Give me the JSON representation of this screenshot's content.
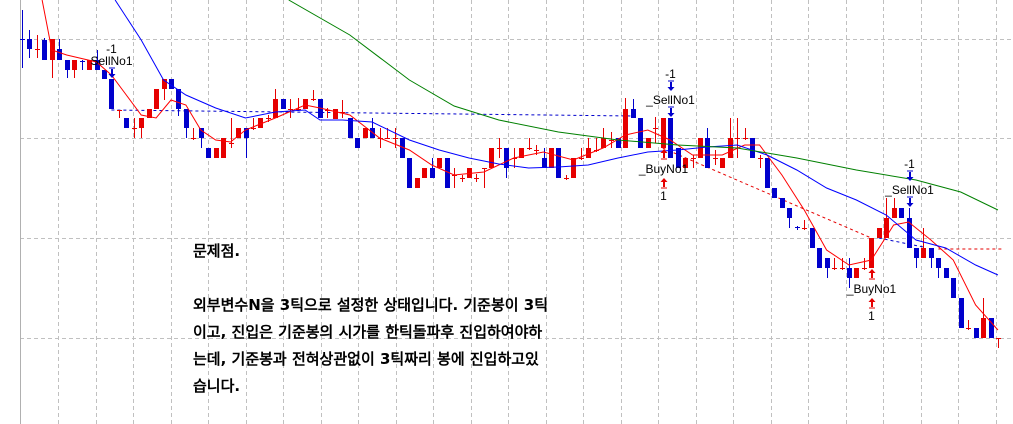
{
  "chart_data": {
    "type": "candlestick",
    "title": "",
    "ylim": [
      976,
      1400
    ],
    "grid": true,
    "colors": {
      "up": "#e60000",
      "down": "#0000cc",
      "ma_short": "#ff0000",
      "ma_mid": "#0000ff",
      "ma_long": "#008000",
      "grid": "#c0c0c0"
    },
    "ohlc": [
      [
        1361,
        1390,
        1332,
        1360
      ],
      [
        1361,
        1370,
        1342,
        1351
      ],
      [
        1351,
        1365,
        1342,
        1351
      ],
      [
        1360,
        1362,
        1340,
        1340
      ],
      [
        1340,
        1361,
        1322,
        1361
      ],
      [
        1351,
        1361,
        1340,
        1340
      ],
      [
        1340,
        1340,
        1322,
        1330
      ],
      [
        1330,
        1340,
        1322,
        1340
      ],
      [
        1339,
        1340,
        1330,
        1338
      ],
      [
        1330,
        1340,
        1330,
        1340
      ],
      [
        1340,
        1350,
        1330,
        1330
      ],
      [
        1330,
        1330,
        1321,
        1321
      ],
      [
        1321,
        1321,
        1291,
        1291
      ],
      [
        1290,
        1290,
        1282,
        1290
      ],
      [
        1282,
        1282,
        1272,
        1272
      ],
      [
        1272,
        1282,
        1262,
        1272
      ],
      [
        1272,
        1282,
        1262,
        1282
      ],
      [
        1282,
        1291,
        1282,
        1291
      ],
      [
        1291,
        1311,
        1291,
        1311
      ],
      [
        1311,
        1321,
        1300,
        1321
      ],
      [
        1321,
        1321,
        1311,
        1311
      ],
      [
        1311,
        1311,
        1284,
        1291
      ],
      [
        1291,
        1291,
        1262,
        1272
      ],
      [
        1262,
        1272,
        1260,
        1262
      ],
      [
        1272,
        1272,
        1252,
        1262
      ],
      [
        1252,
        1252,
        1242,
        1242
      ],
      [
        1242,
        1252,
        1242,
        1252
      ],
      [
        1242,
        1262,
        1242,
        1262
      ],
      [
        1257,
        1282,
        1252,
        1257
      ],
      [
        1262,
        1272,
        1262,
        1272
      ],
      [
        1272,
        1272,
        1242,
        1262
      ],
      [
        1272,
        1282,
        1270,
        1272
      ],
      [
        1272,
        1282,
        1272,
        1282
      ],
      [
        1282,
        1285,
        1278,
        1282
      ],
      [
        1282,
        1311,
        1282,
        1301
      ],
      [
        1301,
        1301,
        1291,
        1291
      ],
      [
        1291,
        1301,
        1282,
        1291
      ],
      [
        1291,
        1302,
        1289,
        1291
      ],
      [
        1291,
        1301,
        1291,
        1301
      ],
      [
        1301,
        1310,
        1299,
        1301
      ],
      [
        1301,
        1301,
        1282,
        1282
      ],
      [
        1290,
        1292,
        1282,
        1290
      ],
      [
        1281,
        1291,
        1281,
        1291
      ],
      [
        1288,
        1300,
        1282,
        1288
      ],
      [
        1282,
        1282,
        1262,
        1262
      ],
      [
        1262,
        1262,
        1252,
        1252
      ],
      [
        1262,
        1272,
        1262,
        1272
      ],
      [
        1272,
        1282,
        1262,
        1262
      ],
      [
        1262,
        1272,
        1252,
        1262
      ],
      [
        1262,
        1272,
        1262,
        1262
      ],
      [
        1262,
        1272,
        1252,
        1262
      ],
      [
        1262,
        1262,
        1242,
        1242
      ],
      [
        1242,
        1242,
        1212,
        1212
      ],
      [
        1212,
        1222,
        1212,
        1222
      ],
      [
        1222,
        1232,
        1222,
        1232
      ],
      [
        1232,
        1242,
        1222,
        1222
      ],
      [
        1232,
        1242,
        1232,
        1242
      ],
      [
        1242,
        1242,
        1212,
        1212
      ],
      [
        1225,
        1232,
        1212,
        1225
      ],
      [
        1222,
        1225,
        1218,
        1222
      ],
      [
        1222,
        1232,
        1222,
        1232
      ],
      [
        1222,
        1226,
        1218,
        1222
      ],
      [
        1232,
        1232,
        1212,
        1232
      ],
      [
        1232,
        1252,
        1232,
        1252
      ],
      [
        1252,
        1262,
        1242,
        1252
      ],
      [
        1252,
        1252,
        1222,
        1232
      ],
      [
        1242,
        1252,
        1232,
        1242
      ],
      [
        1242,
        1252,
        1242,
        1252
      ],
      [
        1252,
        1262,
        1250,
        1252
      ],
      [
        1250,
        1255,
        1245,
        1250
      ],
      [
        1242,
        1252,
        1232,
        1232
      ],
      [
        1232,
        1252,
        1232,
        1252
      ],
      [
        1252,
        1252,
        1222,
        1222
      ],
      [
        1222,
        1225,
        1220,
        1222
      ],
      [
        1222,
        1242,
        1222,
        1242
      ],
      [
        1242,
        1252,
        1240,
        1242
      ],
      [
        1242,
        1262,
        1242,
        1252
      ],
      [
        1250,
        1262,
        1248,
        1250
      ],
      [
        1252,
        1272,
        1252,
        1262
      ],
      [
        1260,
        1268,
        1252,
        1260
      ],
      [
        1262,
        1262,
        1252,
        1252
      ],
      [
        1252,
        1302,
        1252,
        1291
      ],
      [
        1291,
        1301,
        1282,
        1282
      ],
      [
        1282,
        1282,
        1252,
        1252
      ],
      [
        1252,
        1262,
        1252,
        1262
      ],
      [
        1272,
        1283,
        1257,
        1272
      ],
      [
        1252,
        1282,
        1252,
        1282
      ],
      [
        1282,
        1282,
        1242,
        1242
      ],
      [
        1252,
        1252,
        1232,
        1232
      ],
      [
        1232,
        1242,
        1232,
        1242
      ],
      [
        1242,
        1245,
        1232,
        1242
      ],
      [
        1242,
        1262,
        1242,
        1262
      ],
      [
        1262,
        1272,
        1232,
        1232
      ],
      [
        1242,
        1250,
        1235,
        1242
      ],
      [
        1232,
        1242,
        1232,
        1242
      ],
      [
        1242,
        1282,
        1242,
        1262
      ],
      [
        1262,
        1282,
        1242,
        1262
      ],
      [
        1262,
        1272,
        1260,
        1262
      ],
      [
        1262,
        1262,
        1242,
        1242
      ],
      [
        1242,
        1245,
        1232,
        1242
      ],
      [
        1242,
        1242,
        1212,
        1212
      ],
      [
        1212,
        1212,
        1202,
        1202
      ],
      [
        1202,
        1202,
        1192,
        1192
      ],
      [
        1192,
        1192,
        1172,
        1182
      ],
      [
        1173,
        1174,
        1170,
        1172
      ],
      [
        1172,
        1180,
        1170,
        1172
      ],
      [
        1172,
        1172,
        1152,
        1152
      ],
      [
        1152,
        1152,
        1132,
        1132
      ],
      [
        1142,
        1142,
        1122,
        1132
      ],
      [
        1132,
        1142,
        1130,
        1132
      ],
      [
        1132,
        1142,
        1130,
        1132
      ],
      [
        1132,
        1142,
        1112,
        1122
      ],
      [
        1122,
        1132,
        1122,
        1132
      ],
      [
        1132,
        1142,
        1130,
        1132
      ],
      [
        1132,
        1162,
        1132,
        1162
      ],
      [
        1162,
        1172,
        1162,
        1172
      ],
      [
        1162,
        1202,
        1162,
        1182
      ],
      [
        1182,
        1202,
        1182,
        1192
      ],
      [
        1192,
        1192,
        1182,
        1182
      ],
      [
        1182,
        1192,
        1152,
        1152
      ],
      [
        1152,
        1152,
        1132,
        1142
      ],
      [
        1142,
        1172,
        1142,
        1152
      ],
      [
        1152,
        1152,
        1132,
        1142
      ],
      [
        1142,
        1142,
        1122,
        1132
      ],
      [
        1132,
        1132,
        1122,
        1122
      ],
      [
        1122,
        1122,
        1102,
        1102
      ],
      [
        1102,
        1102,
        1072,
        1072
      ],
      [
        1072,
        1080,
        1070,
        1072
      ],
      [
        1072,
        1072,
        1062,
        1062
      ],
      [
        1062,
        1102,
        1062,
        1082
      ],
      [
        1082,
        1082,
        1062,
        1062
      ],
      [
        1062,
        1062,
        1052,
        1062
      ]
    ],
    "moving_averages": [
      {
        "key": "ma_short",
        "points": [
          [
            2.7,
            1400
          ],
          [
            4,
            1350
          ],
          [
            6,
            1345
          ],
          [
            10,
            1338
          ],
          [
            12,
            1325
          ],
          [
            14,
            1305
          ],
          [
            16,
            1285
          ],
          [
            18,
            1282
          ],
          [
            20,
            1300
          ],
          [
            22,
            1295
          ],
          [
            24,
            1270
          ],
          [
            26,
            1260
          ],
          [
            28,
            1258
          ],
          [
            30,
            1270
          ],
          [
            34,
            1282
          ],
          [
            38,
            1295
          ],
          [
            40,
            1292
          ],
          [
            44,
            1285
          ],
          [
            48,
            1262
          ],
          [
            52,
            1250
          ],
          [
            55,
            1235
          ],
          [
            58,
            1225
          ],
          [
            62,
            1228
          ],
          [
            66,
            1242
          ],
          [
            70,
            1248
          ],
          [
            74,
            1240
          ],
          [
            78,
            1252
          ],
          [
            81,
            1265
          ],
          [
            84,
            1270
          ],
          [
            87,
            1260
          ],
          [
            90,
            1245
          ],
          [
            94,
            1245
          ],
          [
            97,
            1255
          ],
          [
            99,
            1255
          ],
          [
            102,
            1225
          ],
          [
            105,
            1190
          ],
          [
            108,
            1150
          ],
          [
            111,
            1135
          ],
          [
            114,
            1140
          ],
          [
            117,
            1175
          ],
          [
            119,
            1178
          ],
          [
            122,
            1160
          ],
          [
            125,
            1140
          ],
          [
            128,
            1095
          ],
          [
            131,
            1070
          ]
        ]
      },
      {
        "key": "ma_mid",
        "points": [
          [
            12.5,
            1400
          ],
          [
            16,
            1360
          ],
          [
            19,
            1320
          ],
          [
            22,
            1305
          ],
          [
            26,
            1292
          ],
          [
            30,
            1282
          ],
          [
            34,
            1288
          ],
          [
            38,
            1290
          ],
          [
            40,
            1280
          ],
          [
            43,
            1280
          ],
          [
            47,
            1278
          ],
          [
            52,
            1260
          ],
          [
            56,
            1250
          ],
          [
            60,
            1242
          ],
          [
            64,
            1236
          ],
          [
            68,
            1232
          ],
          [
            72,
            1233
          ],
          [
            76,
            1235
          ],
          [
            80,
            1242
          ],
          [
            84,
            1248
          ],
          [
            88,
            1250
          ],
          [
            92,
            1253
          ],
          [
            96,
            1255
          ],
          [
            100,
            1245
          ],
          [
            104,
            1230
          ],
          [
            108,
            1212
          ],
          [
            112,
            1200
          ],
          [
            116,
            1185
          ],
          [
            120,
            1160
          ],
          [
            124,
            1152
          ],
          [
            128,
            1135
          ],
          [
            131,
            1125
          ]
        ]
      },
      {
        "key": "ma_long",
        "points": [
          [
            35.8,
            1400
          ],
          [
            44,
            1365
          ],
          [
            52,
            1320
          ],
          [
            58,
            1294
          ],
          [
            64,
            1280
          ],
          [
            72,
            1268
          ],
          [
            80,
            1260
          ],
          [
            88,
            1255
          ],
          [
            96,
            1252
          ],
          [
            104,
            1242
          ],
          [
            112,
            1230
          ],
          [
            120,
            1220
          ],
          [
            126,
            1208
          ],
          [
            131,
            1190
          ]
        ]
      }
    ],
    "order_lines": [
      {
        "color": "down",
        "from": [
          12,
          1290
        ],
        "to": [
          82,
          1284
        ]
      },
      {
        "color": "up",
        "from": [
          86,
          1252
        ],
        "to": [
          114,
          1162
        ]
      },
      {
        "color": "down",
        "from": [
          115,
          1162
        ],
        "to": [
          121,
          1153
        ]
      },
      {
        "color": "up",
        "from": [
          123,
          1151
        ],
        "to": [
          131.5,
          1151
        ]
      }
    ],
    "signals": [
      {
        "type": "sell",
        "index": 12,
        "label": "SellNo1",
        "qty": "-1"
      },
      {
        "type": "sell",
        "index": 87,
        "label": "_SellNo1",
        "qty": "-1"
      },
      {
        "type": "buy",
        "index": 86,
        "label": "_BuyNo1",
        "qty": "1"
      },
      {
        "type": "sell",
        "index": 119,
        "label": "_SellNo1",
        "qty": "-1"
      },
      {
        "type": "buy",
        "index": 114,
        "label": "_BuyNo1",
        "qty": "1"
      }
    ]
  },
  "note": {
    "title": "문제점.",
    "lines": [
      "외부변수N을 3틱으로 설정한 상태입니다. 기준봉이 3틱",
      "이고, 진입은 기준봉의 시가를 한틱돌파후 진입하여야하",
      "는데, 기준봉과 전혀상관없이 3틱짜리 봉에 진입하고있",
      "습니다."
    ]
  }
}
